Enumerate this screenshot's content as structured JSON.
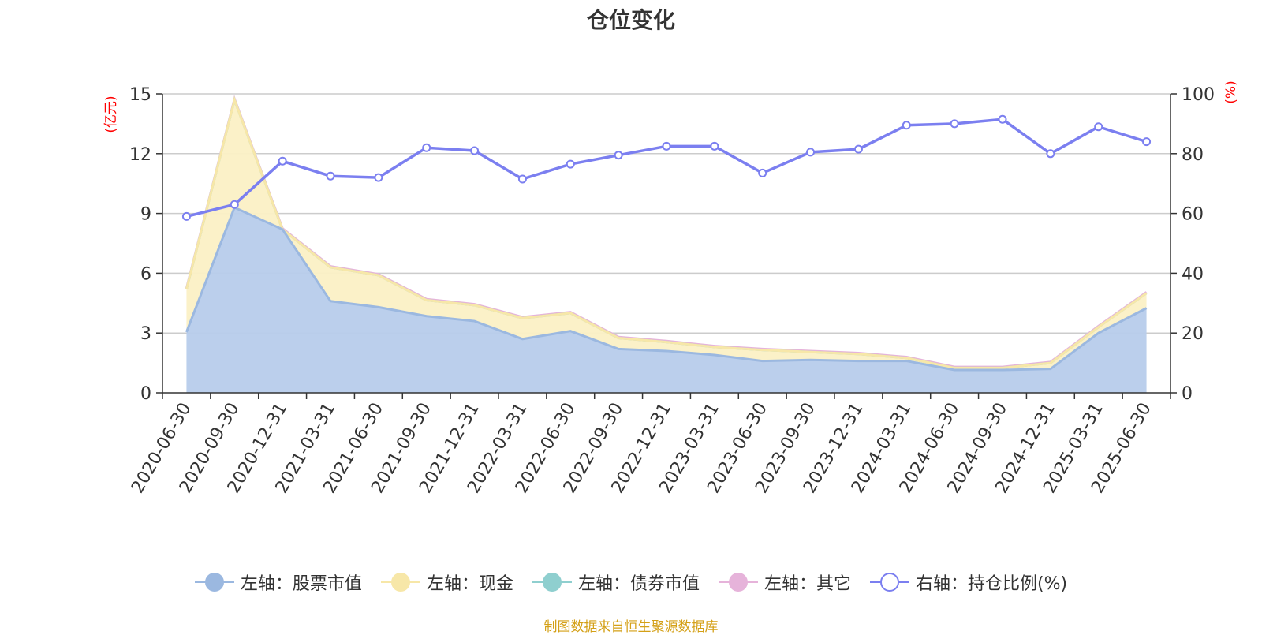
{
  "chart_data": {
    "type": "area",
    "title": "仓位变化",
    "categories": [
      "2020-06-30",
      "2020-09-30",
      "2020-12-31",
      "2021-03-31",
      "2021-06-30",
      "2021-09-30",
      "2021-12-31",
      "2022-03-31",
      "2022-06-30",
      "2022-09-30",
      "2022-12-31",
      "2023-03-31",
      "2023-06-30",
      "2023-09-30",
      "2023-12-31",
      "2024-03-31",
      "2024-06-30",
      "2024-09-30",
      "2024-12-31",
      "2025-03-31",
      "2025-06-30"
    ],
    "left_axis": {
      "unit": "(亿元)",
      "ylim": [
        0,
        15
      ],
      "ticks": [
        "0",
        "3",
        "6",
        "9",
        "12",
        "15"
      ]
    },
    "right_axis": {
      "unit": "(%)",
      "ylim": [
        0,
        100
      ],
      "ticks": [
        "0",
        "20",
        "40",
        "60",
        "80",
        "100"
      ]
    },
    "grid": true,
    "legend_position": "bottom",
    "series": [
      {
        "name": "左轴：股票市值",
        "axis": "left",
        "stack": true,
        "color": "#9bb8e0",
        "fill": "#b7cceb",
        "values": [
          3.05,
          9.3,
          8.2,
          4.6,
          4.3,
          3.85,
          3.6,
          2.7,
          3.1,
          2.2,
          2.1,
          1.9,
          1.6,
          1.65,
          1.6,
          1.6,
          1.15,
          1.15,
          1.2,
          3.0,
          4.25
        ]
      },
      {
        "name": "左轴：现金",
        "axis": "left",
        "stack": true,
        "color": "#f7e7a8",
        "fill": "#fbf0c5",
        "values": [
          2.15,
          5.4,
          0.0,
          1.7,
          1.6,
          0.8,
          0.8,
          1.05,
          0.9,
          0.55,
          0.45,
          0.4,
          0.55,
          0.4,
          0.35,
          0.15,
          0.1,
          0.1,
          0.3,
          0.3,
          0.75
        ]
      },
      {
        "name": "左轴：债券市值",
        "axis": "left",
        "stack": true,
        "color": "#8fcfcf",
        "fill": "#8fcfcf",
        "values": [
          0,
          0,
          0,
          0,
          0,
          0,
          0,
          0,
          0,
          0,
          0,
          0,
          0,
          0,
          0,
          0,
          0,
          0,
          0,
          0,
          0
        ]
      },
      {
        "name": "左轴：其它",
        "axis": "left",
        "stack": true,
        "color": "#e6b3da",
        "fill": "#e6b3da",
        "values": [
          0.05,
          0.05,
          0.05,
          0.05,
          0.05,
          0.05,
          0.05,
          0.05,
          0.05,
          0.05,
          0.05,
          0.05,
          0.05,
          0.05,
          0.05,
          0.05,
          0.05,
          0.05,
          0.05,
          0.05,
          0.05
        ]
      },
      {
        "name": "右轴：持仓比例(%)",
        "axis": "right",
        "stack": false,
        "color": "#7b7ff0",
        "fill": "#ffffff",
        "values": [
          59,
          63,
          77.5,
          72.5,
          72,
          82,
          81,
          71.5,
          76.5,
          79.5,
          82.5,
          82.5,
          73.5,
          80.5,
          81.5,
          89.5,
          90,
          91.5,
          80,
          89,
          84
        ]
      }
    ]
  },
  "footer": {
    "source_note": "制图数据来自恒生聚源数据库"
  }
}
